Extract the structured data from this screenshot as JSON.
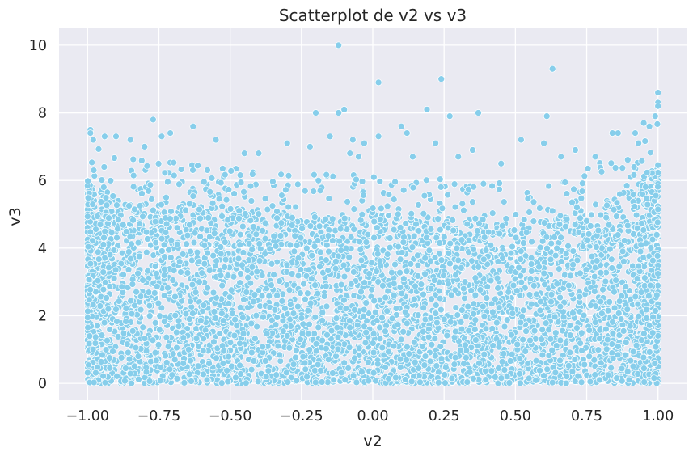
{
  "chart_data": {
    "type": "scatter",
    "title": "Scatterplot de v2 vs v3",
    "xlabel": "v2",
    "ylabel": "v3",
    "xlim": [
      -1.1,
      1.1
    ],
    "ylim": [
      -0.5,
      10.5
    ],
    "xticks": [
      -1.0,
      -0.75,
      -0.5,
      -0.25,
      0.0,
      0.25,
      0.5,
      0.75,
      1.0
    ],
    "xtick_labels": [
      "−1.00",
      "−0.75",
      "−0.50",
      "−0.25",
      "0.00",
      "0.25",
      "0.50",
      "0.75",
      "1.00"
    ],
    "yticks": [
      0,
      2,
      4,
      6,
      8,
      10
    ],
    "ytick_labels": [
      "0",
      "2",
      "4",
      "6",
      "8",
      "10"
    ],
    "grid": true,
    "colors": {
      "background": "#eaeaf2",
      "point_fill": "#87ceeb",
      "point_edge": "#ffffff"
    },
    "points": [
      [
        -0.12,
        10.0
      ],
      [
        0.02,
        8.9
      ],
      [
        0.24,
        9.0
      ],
      [
        0.63,
        9.3
      ],
      [
        -0.2,
        8.0
      ],
      [
        -0.1,
        8.1
      ],
      [
        -0.12,
        8.0
      ],
      [
        0.19,
        8.1
      ],
      [
        0.37,
        8.0
      ],
      [
        0.27,
        7.9
      ],
      [
        0.61,
        7.9
      ],
      [
        -0.99,
        7.5
      ],
      [
        -0.99,
        7.4
      ],
      [
        -0.98,
        7.2
      ],
      [
        -0.77,
        7.8
      ],
      [
        -0.74,
        7.3
      ],
      [
        -0.71,
        7.4
      ],
      [
        -0.63,
        7.6
      ],
      [
        -0.9,
        7.3
      ],
      [
        -0.85,
        7.2
      ],
      [
        -0.3,
        7.1
      ],
      [
        -0.22,
        7.0
      ],
      [
        -0.15,
        7.3
      ],
      [
        -0.07,
        7.2
      ],
      [
        -0.03,
        7.1
      ],
      [
        0.02,
        7.3
      ],
      [
        0.1,
        7.6
      ],
      [
        0.12,
        7.4
      ],
      [
        0.22,
        7.1
      ],
      [
        0.52,
        7.2
      ],
      [
        0.6,
        7.1
      ],
      [
        0.71,
        6.9
      ],
      [
        0.84,
        7.4
      ],
      [
        0.86,
        7.4
      ],
      [
        0.95,
        7.7
      ],
      [
        0.97,
        7.6
      ],
      [
        1.0,
        8.6
      ],
      [
        1.0,
        8.3
      ],
      [
        1.0,
        8.2
      ],
      [
        -0.94,
        7.3
      ],
      [
        -0.8,
        7.0
      ],
      [
        -0.55,
        7.2
      ],
      [
        -0.45,
        6.8
      ],
      [
        -0.4,
        6.8
      ],
      [
        0.14,
        6.7
      ],
      [
        0.3,
        6.7
      ],
      [
        0.35,
        6.9
      ],
      [
        0.92,
        7.4
      ],
      [
        0.99,
        7.9
      ],
      [
        -0.08,
        6.8
      ],
      [
        -0.05,
        6.7
      ],
      [
        0.45,
        6.5
      ],
      [
        0.78,
        6.7
      ],
      [
        0.66,
        6.7
      ]
    ],
    "dense_region": {
      "x_range": [
        -1.0,
        1.0
      ],
      "y_range": [
        0,
        6.0
      ],
      "point_count": 4500,
      "envelope": [
        [
          -1.0,
          6.0
        ],
        [
          -0.9,
          5.5
        ],
        [
          -0.75,
          5.4
        ],
        [
          -0.5,
          5.2
        ],
        [
          -0.25,
          5.0
        ],
        [
          0.0,
          5.0
        ],
        [
          0.25,
          4.9
        ],
        [
          0.5,
          4.7
        ],
        [
          0.6,
          4.8
        ],
        [
          0.75,
          5.2
        ],
        [
          0.9,
          5.7
        ],
        [
          1.0,
          6.5
        ]
      ]
    }
  }
}
